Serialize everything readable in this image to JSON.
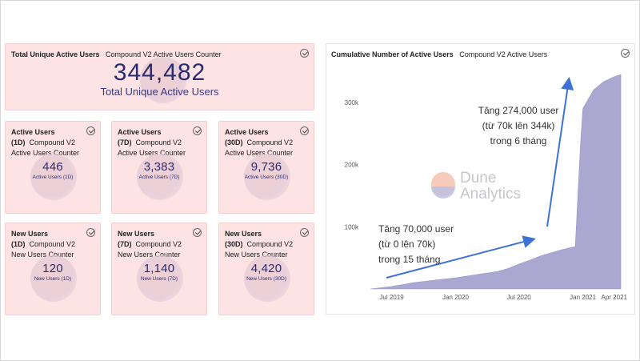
{
  "total_card": {
    "title": "Total Unique Active Users",
    "subtitle": "Compound V2 Active Users Counter",
    "value": "344,482",
    "label": "Total Unique Active Users"
  },
  "active_cards": [
    {
      "title": "Active Users",
      "period": "(1D)",
      "source": "Compound V2",
      "kind": "Active Users Counter",
      "value": "446",
      "label": "Active Users (1D)"
    },
    {
      "title": "Active Users",
      "period": "(7D)",
      "source": "Compound V2",
      "kind": "Active Users Counter",
      "value": "3,383",
      "label": "Active Users (7D)"
    },
    {
      "title": "Active Users",
      "period": "(30D)",
      "source": "Compound V2",
      "kind": "Active Users Counter",
      "value": "9,736",
      "label": "Active Users (30D)"
    }
  ],
  "new_cards": [
    {
      "title": "New Users",
      "period": "(1D)",
      "source": "Compound V2",
      "kind": "New Users Counter",
      "value": "120",
      "label": "New Users (1D)"
    },
    {
      "title": "New Users",
      "period": "(7D)",
      "source": "Compound V2",
      "kind": "New Users Counter",
      "value": "1,140",
      "label": "New Users (7D)"
    },
    {
      "title": "New Users",
      "period": "(30D)",
      "source": "Compound V2",
      "kind": "New Users Counter",
      "value": "4,420",
      "label": "New Users (30D)"
    }
  ],
  "chart_header": {
    "title": "Cumulative Number of Active Users",
    "subtitle": "Compound V2 Active Users"
  },
  "watermark": {
    "line1": "Dune",
    "line2": "Analytics"
  },
  "annotations": {
    "upper": [
      "Tăng 274,000 user",
      "(từ 70k lên 344k)",
      "trong 6 tháng"
    ],
    "lower": [
      "Tăng 70,000 user",
      "(từ 0 lên 70k)",
      "trong 15 tháng"
    ]
  },
  "colors": {
    "card_bg": "#fde3e3",
    "area_fill": "#aaa8d1",
    "arrow": "#3f72d6",
    "value_text": "#2b2b6e"
  },
  "chart_data": {
    "type": "area",
    "title": "Cumulative Number of Active Users",
    "xlabel": "",
    "ylabel": "",
    "x_ticks": [
      "Jul 2019",
      "Jan 2020",
      "Jul 2020",
      "Jan 2021",
      "Apr 2021"
    ],
    "y_ticks": [
      "100k",
      "200k",
      "300k"
    ],
    "ylim": [
      0,
      355000
    ],
    "grid": false,
    "x": [
      "2019-05",
      "2019-07",
      "2019-09",
      "2019-11",
      "2020-01",
      "2020-03",
      "2020-05",
      "2020-06",
      "2020-07",
      "2020-08",
      "2020-09",
      "2020-10",
      "2020-11",
      "2020-12",
      "2020-12-10",
      "2020-12-25",
      "2021-01",
      "2021-02",
      "2021-03",
      "2021-04",
      "2021-04-20"
    ],
    "series": [
      {
        "values": [
          0,
          4000,
          10000,
          14000,
          18000,
          23000,
          28000,
          33000,
          40000,
          46000,
          53000,
          58000,
          63000,
          67000,
          68000,
          232000,
          290000,
          320000,
          333000,
          341000,
          344482
        ]
      }
    ]
  }
}
